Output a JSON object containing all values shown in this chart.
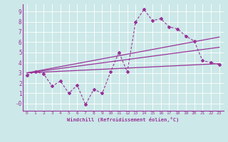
{
  "xlabel": "Windchill (Refroidissement éolien,°C)",
  "bg_color": "#cce8e8",
  "line_color": "#993399",
  "xlim": [
    -0.5,
    23.5
  ],
  "ylim": [
    -0.7,
    9.7
  ],
  "xticks": [
    0,
    1,
    2,
    3,
    4,
    5,
    6,
    7,
    8,
    9,
    10,
    11,
    12,
    13,
    14,
    15,
    16,
    17,
    18,
    19,
    20,
    21,
    22,
    23
  ],
  "ytick_vals": [
    0,
    1,
    2,
    3,
    4,
    5,
    6,
    7,
    8,
    9
  ],
  "ytick_labels": [
    "-0",
    "1",
    "2",
    "3",
    "4",
    "5",
    "6",
    "7",
    "8",
    "9"
  ],
  "series_main": [
    [
      0,
      2.8
    ],
    [
      1,
      3.1
    ],
    [
      2,
      2.9
    ],
    [
      3,
      1.7
    ],
    [
      4,
      2.2
    ],
    [
      5,
      1.0
    ],
    [
      6,
      1.8
    ],
    [
      7,
      -0.1
    ],
    [
      8,
      1.4
    ],
    [
      9,
      1.0
    ],
    [
      10,
      3.1
    ],
    [
      11,
      5.0
    ],
    [
      12,
      3.1
    ],
    [
      13,
      8.0
    ],
    [
      14,
      9.2
    ],
    [
      15,
      8.1
    ],
    [
      16,
      8.3
    ],
    [
      17,
      7.5
    ],
    [
      18,
      7.3
    ],
    [
      19,
      6.6
    ],
    [
      20,
      6.1
    ],
    [
      21,
      4.2
    ],
    [
      22,
      4.0
    ],
    [
      23,
      3.8
    ]
  ],
  "line1": [
    [
      0,
      3.0
    ],
    [
      23,
      6.5
    ]
  ],
  "line2": [
    [
      0,
      3.0
    ],
    [
      23,
      5.5
    ]
  ],
  "line3": [
    [
      0,
      3.0
    ],
    [
      23,
      3.9
    ]
  ]
}
